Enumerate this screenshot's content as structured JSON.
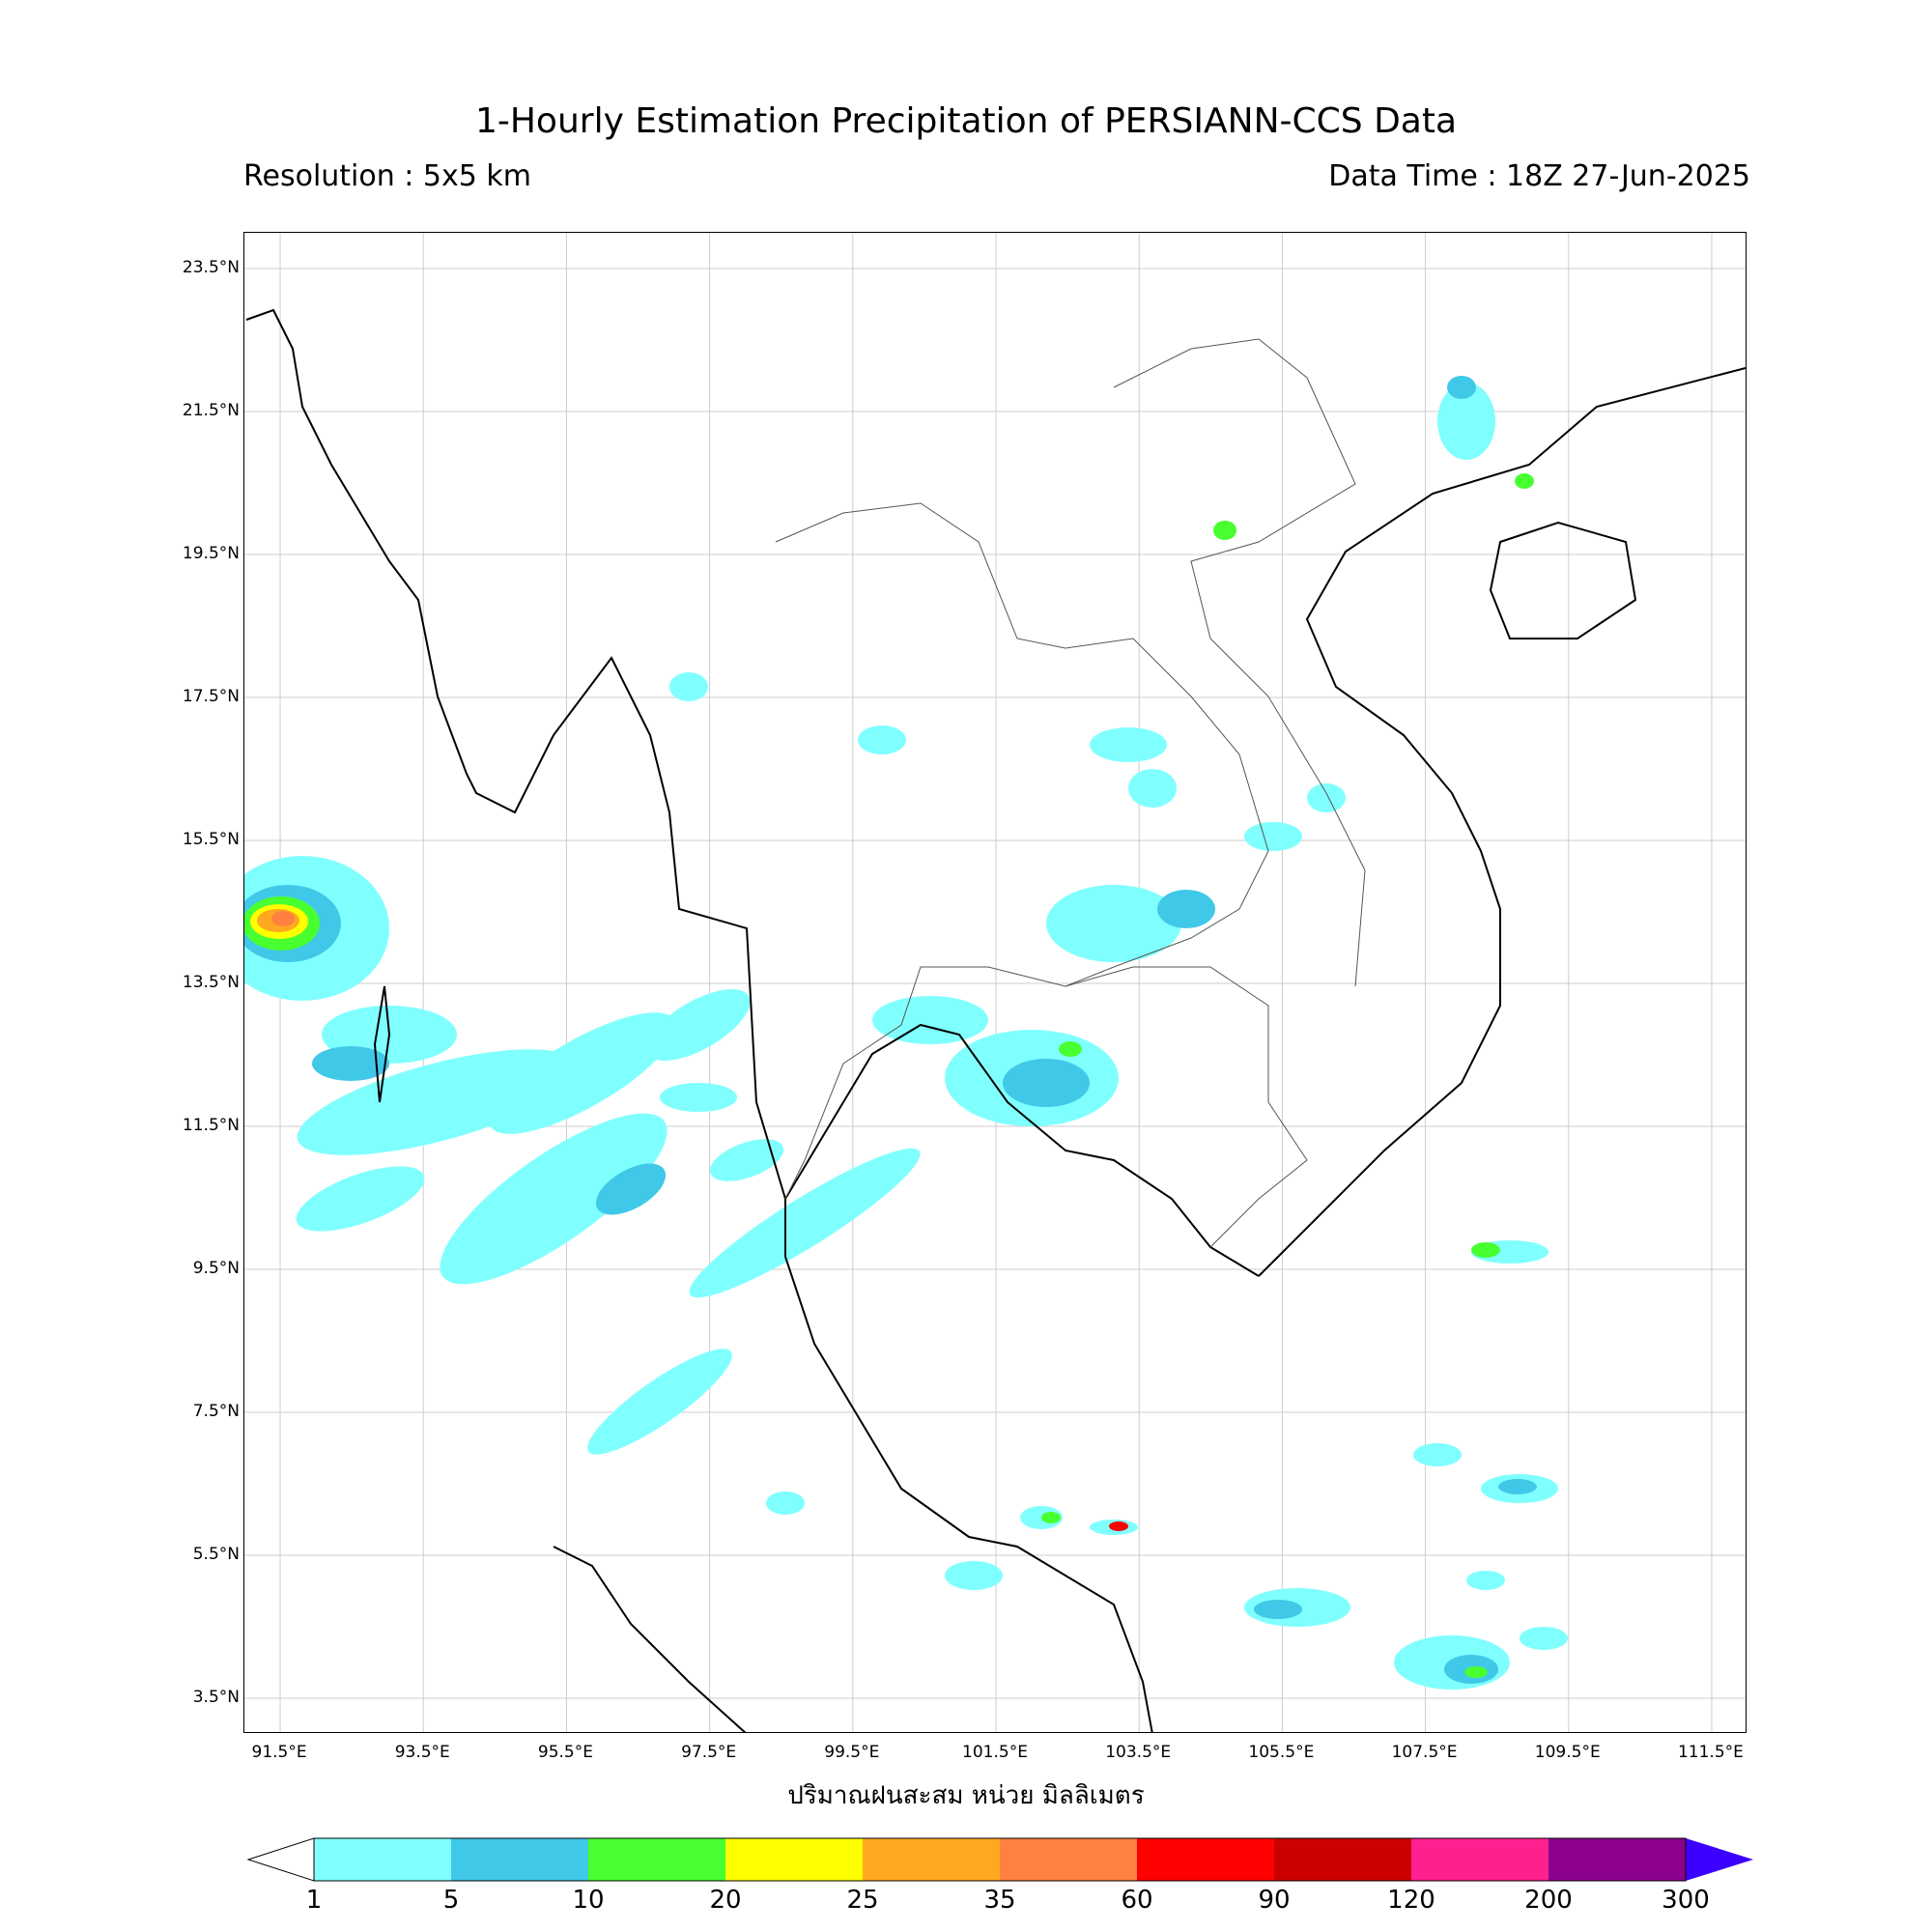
{
  "title": "1-Hourly Estimation Precipitation of PERSIANN-CCS Data",
  "resolution": "Resolution : 5x5 km",
  "data_time": "Data Time : 18Z 27-Jun-2025",
  "xlabel": "ปริมาณฝนสะสม หน่วย มิลลิเมตร",
  "map": {
    "lon_range": [
      91.0,
      112.0
    ],
    "lat_range": [
      3.0,
      24.0
    ],
    "lat_ticks": [
      "23.5°N",
      "21.5°N",
      "19.5°N",
      "17.5°N",
      "15.5°N",
      "13.5°N",
      "11.5°N",
      "9.5°N",
      "7.5°N",
      "5.5°N",
      "3.5°N"
    ],
    "lat_values": [
      23.5,
      21.5,
      19.5,
      17.5,
      15.5,
      13.5,
      11.5,
      9.5,
      7.5,
      5.5,
      3.5
    ],
    "lon_ticks": [
      "91.5°E",
      "93.5°E",
      "95.5°E",
      "97.5°E",
      "99.5°E",
      "101.5°E",
      "103.5°E",
      "105.5°E",
      "107.5°E",
      "109.5°E",
      "111.5°E"
    ],
    "lon_values": [
      91.5,
      93.5,
      95.5,
      97.5,
      99.5,
      101.5,
      103.5,
      105.5,
      107.5,
      109.5,
      111.5
    ]
  },
  "colorbar": {
    "labels": [
      "1",
      "5",
      "10",
      "20",
      "25",
      "35",
      "60",
      "90",
      "120",
      "200",
      "300"
    ],
    "colors": [
      "#80ffff",
      "#40c8e8",
      "#48ff30",
      "#ffff00",
      "#ffa820",
      "#ff8040",
      "#ff0000",
      "#cc0000",
      "#ff2090",
      "#8c008c"
    ],
    "under_color": "#ffffff",
    "over_color": "#3b00ff"
  }
}
